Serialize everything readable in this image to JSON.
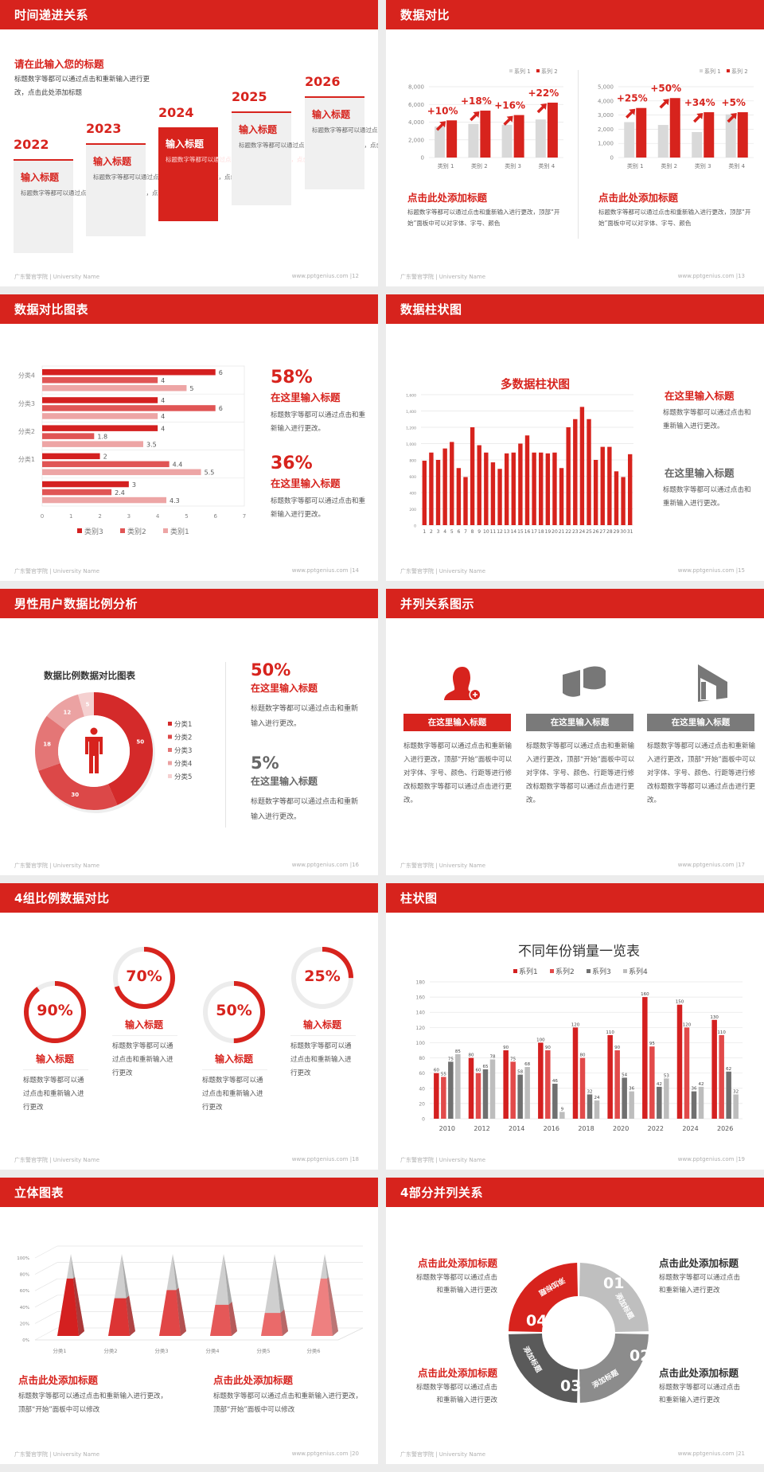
{
  "footer": {
    "left": "广东警官学院 | University Name",
    "right": "www.pptgenius.com"
  },
  "colors": {
    "brand_red": "#d7231d",
    "gray": "#bdbdbd",
    "dark_gray": "#707070"
  },
  "slides": [
    {
      "page": "12",
      "title": "时间递进关系",
      "heading": "请在此输入您的标题",
      "desc": "标题数字等都可以通过点击和重新输入进行更改，点击此处添加标题",
      "active_index": 2,
      "timeline": [
        {
          "year": "2022",
          "title": "输入标题",
          "text": "标题数字等都可以通过点击和重新输入进行更改，点击此处添加"
        },
        {
          "year": "2023",
          "title": "输入标题",
          "text": "标题数字等都可以通过点击和重新输入进行更改，点击此处添加"
        },
        {
          "year": "2024",
          "title": "输入标题",
          "text": "标题数字等都可以通过点击和重新输入进行更改，点击此处添加"
        },
        {
          "year": "2025",
          "title": "输入标题",
          "text": "标题数字等都可以通过点击和重新输入进行更改，点击此处添加"
        },
        {
          "year": "2026",
          "title": "输入标题",
          "text": "标题数字等都可以通过点击和重新输入进行更改，点击此处添加"
        }
      ]
    },
    {
      "page": "13",
      "title": "数据对比",
      "blocks": [
        {
          "title": "点击此处添加标题",
          "text": "标题数字等都可以通过点击和重新输入进行更改，顶部“开始”面板中可以对字体、字号、颜色"
        },
        {
          "title": "点击此处添加标题",
          "text": "标题数字等都可以通过点击和重新输入进行更改，顶部“开始”面板中可以对字体、字号、颜色"
        }
      ]
    },
    {
      "page": "14",
      "title": "数据对比图表",
      "stats": [
        {
          "value": "58%",
          "title": "在这里输入标题",
          "text": "标题数字等都可以通过点击和重新输入进行更改。"
        },
        {
          "value": "36%",
          "title": "在这里输入标题",
          "text": "标题数字等都可以通过点击和重新输入进行更改。"
        }
      ]
    },
    {
      "page": "15",
      "title": "数据柱状图",
      "items": [
        {
          "title": "在这里输入标题",
          "text": "标题数字等都可以通过点击和重新输入进行更改。"
        },
        {
          "title": "在这里输入标题",
          "text": "标题数字等都可以通过点击和重新输入进行更改。"
        }
      ]
    },
    {
      "page": "16",
      "title": "男性用户数据比例分析",
      "stats": [
        {
          "value": "50%",
          "title": "在这里输入标题",
          "text": "标题数字等都可以通过点击和重新输入进行更改。"
        },
        {
          "value": "5%",
          "title": "在这里输入标题",
          "text": "标题数字等都可以通过点击和重新输入进行更改。"
        }
      ]
    },
    {
      "page": "17",
      "title": "并列关系图示",
      "columns": [
        {
          "icon": "woman-add-user-icon",
          "label": "在这里输入标题",
          "text": "标题数字等都可以通过点击和重新输入进行更改，顶部“开始”面板中可以对字体、字号、颜色、行距等进行修改标题数字等都可以通过点击进行更改。"
        },
        {
          "icon": "pie-chart-3d-icon",
          "label": "在这里输入标题",
          "text": "标题数字等都可以通过点击和重新输入进行更改，顶部“开始”面板中可以对字体、字号、颜色、行距等进行修改标题数字等都可以通过点击进行更改。"
        },
        {
          "icon": "building-icon",
          "label": "在这里输入标题",
          "text": "标题数字等都可以通过点击和重新输入进行更改，顶部“开始”面板中可以对字体、字号、颜色、行距等进行修改标题数字等都可以通过点击进行更改。"
        }
      ]
    },
    {
      "page": "18",
      "title": "4组比例数据对比",
      "rings": [
        {
          "percent": 90,
          "label": "90%",
          "title": "输入标题",
          "text": "标题数字等都可以通过点击和重新输入进行更改"
        },
        {
          "percent": 70,
          "label": "70%",
          "title": "输入标题",
          "text": "标题数字等都可以通过点击和重新输入进行更改"
        },
        {
          "percent": 50,
          "label": "50%",
          "title": "输入标题",
          "text": "标题数字等都可以通过点击和重新输入进行更改"
        },
        {
          "percent": 25,
          "label": "25%",
          "title": "输入标题",
          "text": "标题数字等都可以通过点击和重新输入进行更改"
        }
      ]
    },
    {
      "page": "19",
      "title": "柱状图"
    },
    {
      "page": "20",
      "title": "立体图表",
      "blocks": [
        {
          "title": "点击此处添加标题",
          "text": "标题数字等都可以通过点击和重新输入进行更改，顶部“开始”面板中可以修改"
        },
        {
          "title": "点击此处添加标题",
          "text": "标题数字等都可以通过点击和重新输入进行更改，顶部“开始”面板中可以修改"
        }
      ]
    },
    {
      "page": "21",
      "title": "4部分并列关系",
      "segments": [
        {
          "number": "01",
          "label": "添加标题",
          "color": "#bfbfbf"
        },
        {
          "number": "02",
          "label": "添加标题",
          "color": "#8c8c8c"
        },
        {
          "number": "03",
          "label": "添加标题",
          "color": "#5a5a5a"
        },
        {
          "number": "04",
          "label": "添加标题",
          "color": "#d7231d"
        }
      ],
      "texts": [
        {
          "title": "点击此处添加标题",
          "line1": "标题数字等都可以通过点击",
          "line2": "和重新输入进行更改"
        },
        {
          "title": "点击此处添加标题",
          "line1": "标题数字等都可以通过点击",
          "line2": "和重新输入进行更改"
        },
        {
          "title": "点击此处添加标题",
          "line1": "标题数字等都可以通过点击",
          "line2": "和重新输入进行更改"
        },
        {
          "title": "点击此处添加标题",
          "line1": "标题数字等都可以通过点击",
          "line2": "和重新输入进行更改"
        }
      ]
    }
  ],
  "chart_data": [
    {
      "type": "bar",
      "slide": "13-left",
      "categories": [
        "类别 1",
        "类别 2",
        "类别 3",
        "类别 4"
      ],
      "series": [
        {
          "name": "系列 1",
          "values": [
            3500,
            3800,
            3700,
            4300
          ],
          "color": "#d9d9d9"
        },
        {
          "name": "系列 2",
          "values": [
            4200,
            5300,
            4800,
            6200
          ],
          "color": "#d7231d"
        }
      ],
      "annotations": [
        "+10%",
        "+18%",
        "+16%",
        "+22%"
      ],
      "ylim": [
        0,
        8000
      ],
      "yticks": [
        "0",
        "2,000",
        "4,000",
        "6,000",
        "8,000"
      ],
      "legend": "top-right",
      "grid": true
    },
    {
      "type": "bar",
      "slide": "13-right",
      "categories": [
        "类别 1",
        "类别 2",
        "类别 3",
        "类别 4"
      ],
      "series": [
        {
          "name": "系列 1",
          "values": [
            2500,
            2300,
            1800,
            3050
          ],
          "color": "#d9d9d9"
        },
        {
          "name": "系列 2",
          "values": [
            3500,
            4200,
            3200,
            3200
          ],
          "color": "#d7231d"
        }
      ],
      "annotations": [
        "+25%",
        "+50%",
        "+34%",
        "+5%"
      ],
      "ylim": [
        0,
        5000
      ],
      "yticks": [
        "0",
        "1,000",
        "2,000",
        "3,000",
        "4,000",
        "5,000"
      ],
      "legend": "top-right",
      "grid": true
    },
    {
      "type": "bar",
      "orientation": "horizontal",
      "slide": "14",
      "categories": [
        "",
        "分类1",
        "分类2",
        "分类3",
        "分类4"
      ],
      "series": [
        {
          "name": "类别3",
          "values": [
            3,
            2,
            4,
            4,
            6
          ],
          "color": "#d42020"
        },
        {
          "name": "类别2",
          "values": [
            2.4,
            4.4,
            1.8,
            6,
            4
          ],
          "color": "#e05555"
        },
        {
          "name": "类别1",
          "values": [
            4.3,
            5.5,
            3.5,
            4,
            5
          ],
          "color": "#eda5a5"
        }
      ],
      "xlim": [
        0,
        7
      ],
      "xticks": [
        "0",
        "1",
        "2",
        "3",
        "4",
        "5",
        "6",
        "7"
      ],
      "legend": "bottom",
      "grid": true
    },
    {
      "type": "bar",
      "slide": "15",
      "title": "多数据柱状图",
      "categories": [
        "1",
        "2",
        "3",
        "4",
        "5",
        "6",
        "7",
        "8",
        "9",
        "10",
        "11",
        "12",
        "13",
        "14",
        "15",
        "16",
        "17",
        "18",
        "19",
        "20",
        "21",
        "22",
        "23",
        "24",
        "25",
        "26",
        "27",
        "28",
        "29",
        "30",
        "31"
      ],
      "values": [
        790,
        890,
        800,
        940,
        1020,
        700,
        590,
        1200,
        980,
        890,
        770,
        690,
        880,
        890,
        1000,
        1100,
        890,
        890,
        880,
        890,
        700,
        1200,
        1300,
        1450,
        1300,
        800,
        960,
        960,
        660,
        590,
        870
      ],
      "ylim": [
        0,
        1600
      ],
      "yticks": [
        "0",
        "200",
        "400",
        "600",
        "800",
        "1,000",
        "1,200",
        "1,400",
        "1,600"
      ],
      "color": "#d7231d",
      "grid": true
    },
    {
      "type": "pie",
      "variant": "donut",
      "slide": "16",
      "title": "数据比例数据对比图表",
      "categories": [
        "分类1",
        "分类2",
        "分类3",
        "分类4",
        "分类5"
      ],
      "values": [
        50,
        30,
        18,
        12,
        5
      ],
      "colors": [
        "#d42a2a",
        "#dc4848",
        "#e47676",
        "#eba2a2",
        "#f5d0d0"
      ],
      "center_icon": "male-person-icon",
      "legend": "right"
    },
    {
      "type": "bar",
      "slide": "19",
      "title": "不同年份销量一览表",
      "categories": [
        "2010",
        "2012",
        "2014",
        "2016",
        "2018",
        "2020",
        "2022",
        "2024",
        "2026"
      ],
      "series": [
        {
          "name": "系列1",
          "values": [
            60,
            80,
            90,
            100,
            120,
            110,
            160,
            150,
            130
          ],
          "color": "#d42020"
        },
        {
          "name": "系列2",
          "values": [
            55,
            60,
            75,
            90,
            80,
            90,
            95,
            120,
            110
          ],
          "color": "#e24a4a"
        },
        {
          "name": "系列3",
          "values": [
            75,
            65,
            58,
            46,
            32,
            54,
            42,
            36,
            62
          ],
          "color": "#707070"
        },
        {
          "name": "系列4",
          "values": [
            85,
            78,
            68,
            9,
            24,
            36,
            53,
            42,
            32
          ],
          "color": "#bdbdbd"
        }
      ],
      "ylim": [
        0,
        180
      ],
      "yticks": [
        "0",
        "20",
        "40",
        "60",
        "80",
        "100",
        "120",
        "140",
        "160",
        "180"
      ],
      "legend": "top",
      "grid": true
    },
    {
      "type": "bar",
      "variant": "3d-pyramid",
      "slide": "20",
      "categories": [
        "分类1",
        "分类2",
        "分类3",
        "分类4",
        "分类5",
        "分类6"
      ],
      "values": [
        70,
        46,
        56,
        38,
        28,
        70
      ],
      "colors": [
        "#d42020",
        "#dc3434",
        "#e14646",
        "#e55858",
        "#ea6a6a",
        "#ee8080"
      ],
      "ylim": [
        0,
        100
      ],
      "yticks": [
        "0%",
        "20%",
        "40%",
        "60%",
        "80%",
        "100%"
      ],
      "grid": true
    }
  ]
}
